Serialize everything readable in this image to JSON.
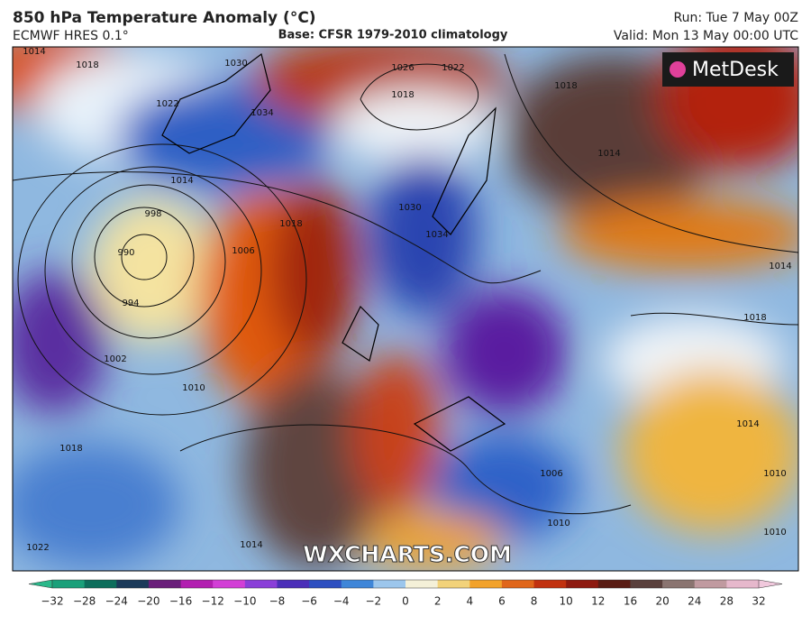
{
  "header": {
    "title": "850 hPa Temperature Anomaly (°C)",
    "model": "ECMWF HRES 0.1°",
    "base": "Base: CFSR 1979-2010 climatology",
    "run": "Run: Tue 7 May 00Z",
    "valid": "Valid: Mon 13 May 00:00 UTC"
  },
  "map": {
    "logo": "MetDesk",
    "watermark": "WXCHARTS.COM",
    "isobar_labels": [
      "1014",
      "1018",
      "1030",
      "1022",
      "1034",
      "1026",
      "1022",
      "1018",
      "1018",
      "1014",
      "1014",
      "998",
      "990",
      "994",
      "1006",
      "1018",
      "1002",
      "1010",
      "1018",
      "1022",
      "1014",
      "1018",
      "1014",
      "1010",
      "1010",
      "1010",
      "1006",
      "1030",
      "1034",
      "1014"
    ]
  },
  "colorbar": {
    "labels": [
      "−32",
      "−28",
      "−24",
      "−20",
      "−16",
      "−12",
      "−10",
      "−8",
      "−6",
      "−4",
      "−2",
      "0",
      "2",
      "4",
      "6",
      "8",
      "10",
      "12",
      "16",
      "20",
      "24",
      "28",
      "32"
    ]
  }
}
